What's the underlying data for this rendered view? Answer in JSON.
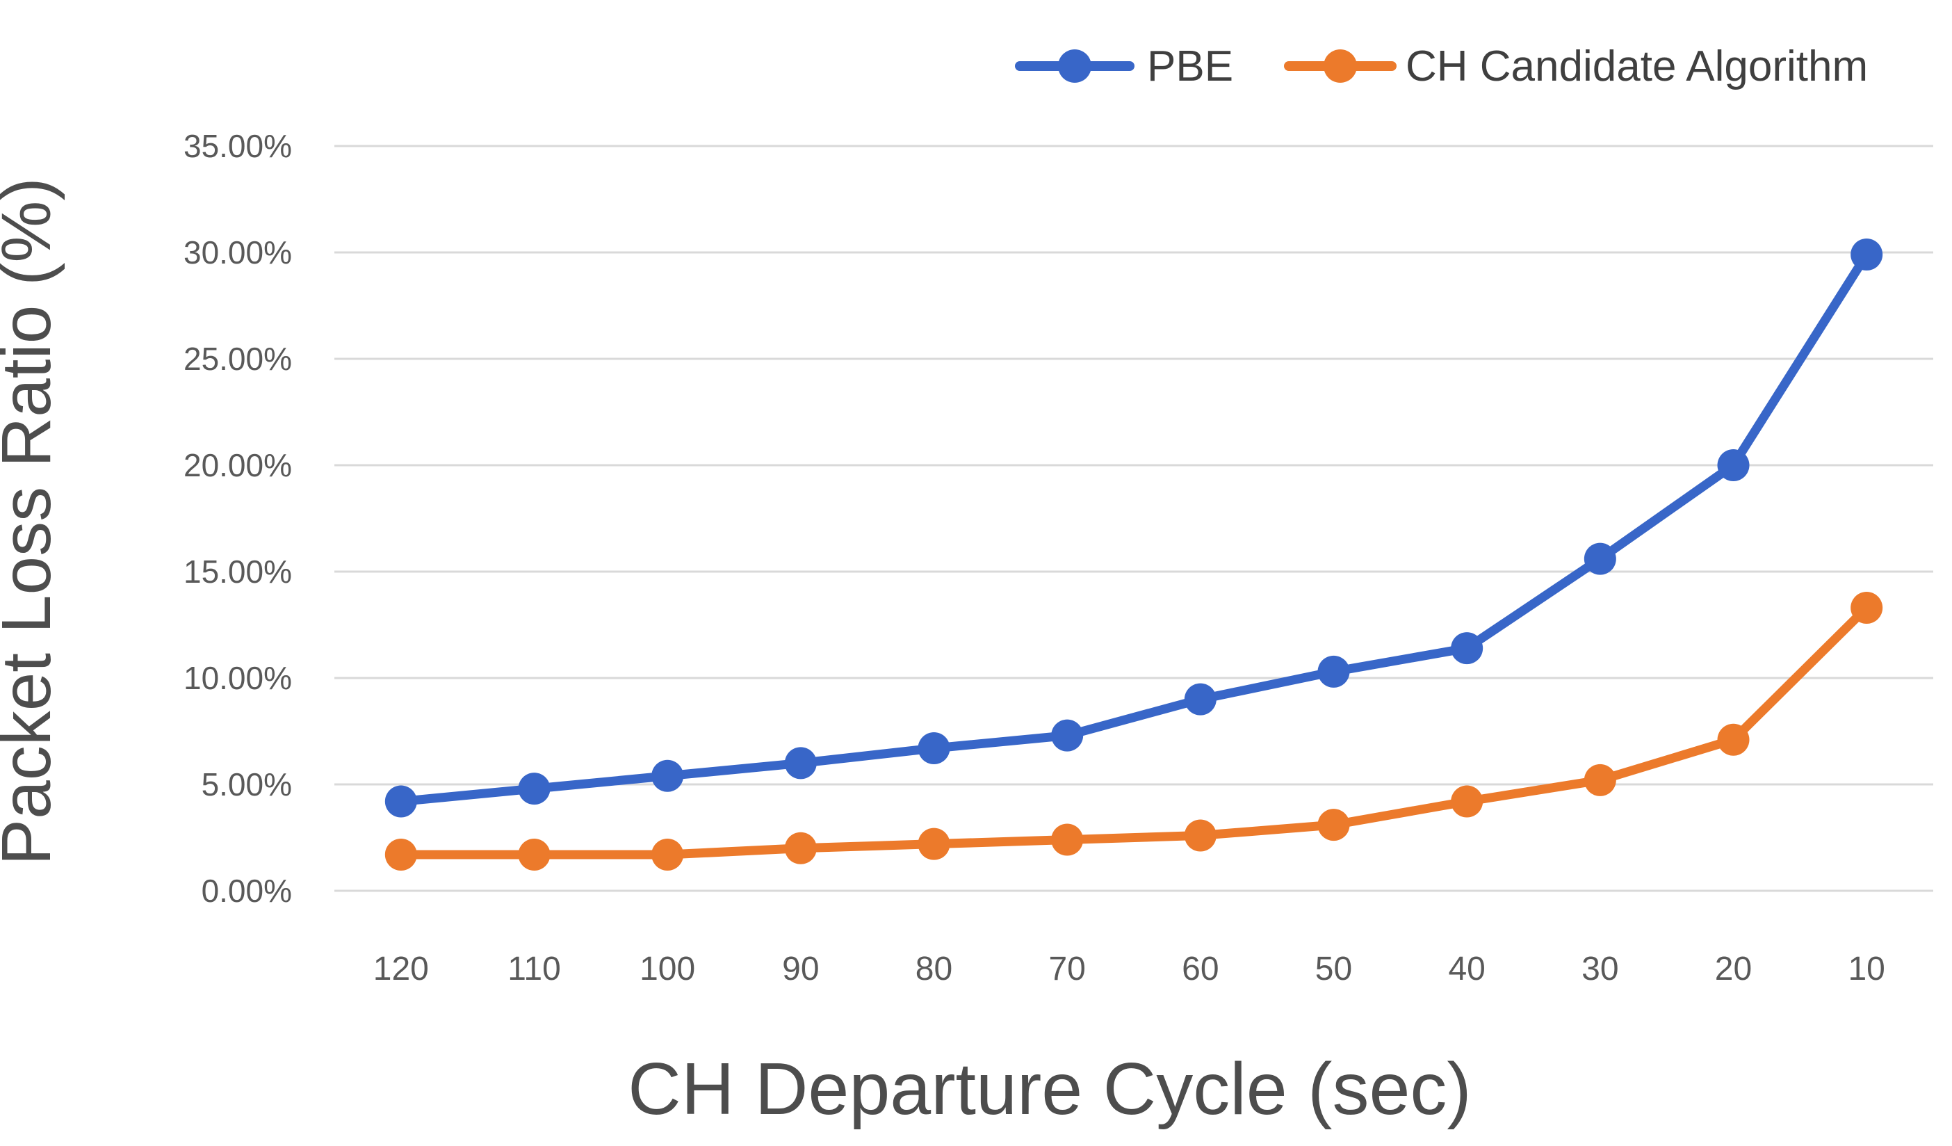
{
  "chart_data": {
    "type": "line",
    "title": "",
    "xlabel": "CH Departure Cycle (sec)",
    "ylabel": "Packet Loss Ratio (%)",
    "categories": [
      "120",
      "110",
      "100",
      "90",
      "80",
      "70",
      "60",
      "50",
      "40",
      "30",
      "20",
      "10"
    ],
    "y_tick_labels": [
      "0.00%",
      "5.00%",
      "10.00%",
      "15.00%",
      "20.00%",
      "25.00%",
      "30.00%",
      "35.00%"
    ],
    "ylim": [
      0,
      35
    ],
    "y_tick_step": 5,
    "grid": "horizontal-only",
    "legend_position": "top-right",
    "series": [
      {
        "name": "PBE",
        "color": "#3866C8",
        "values": [
          4.2,
          4.8,
          5.4,
          6.0,
          6.7,
          7.3,
          9.0,
          10.3,
          11.4,
          15.6,
          20.0,
          29.9
        ]
      },
      {
        "name": "CH Candidate Algorithm",
        "color": "#EC7A2B",
        "values": [
          1.7,
          1.7,
          1.7,
          2.0,
          2.2,
          2.4,
          2.6,
          3.1,
          4.2,
          5.2,
          7.1,
          13.3
        ]
      }
    ]
  },
  "colors": {
    "background": "#FFFFFF",
    "gridline": "#D9D9D9",
    "tick_label_text": "#595959",
    "axis_title_text": "#4D4D4D",
    "legend_text": "#3F3F3F"
  }
}
